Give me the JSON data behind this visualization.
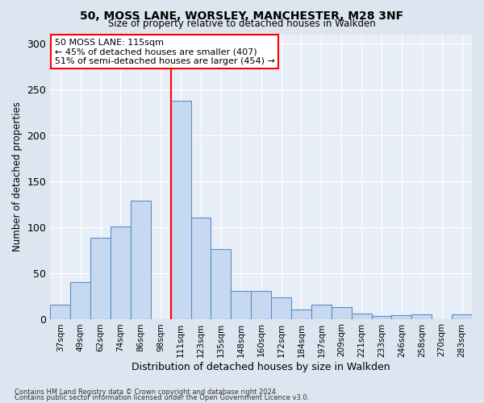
{
  "title1": "50, MOSS LANE, WORSLEY, MANCHESTER, M28 3NF",
  "title2": "Size of property relative to detached houses in Walkden",
  "xlabel": "Distribution of detached houses by size in Walkden",
  "ylabel": "Number of detached properties",
  "categories": [
    "37sqm",
    "49sqm",
    "62sqm",
    "74sqm",
    "86sqm",
    "98sqm",
    "111sqm",
    "123sqm",
    "135sqm",
    "148sqm",
    "160sqm",
    "172sqm",
    "184sqm",
    "197sqm",
    "209sqm",
    "221sqm",
    "233sqm",
    "246sqm",
    "258sqm",
    "270sqm",
    "283sqm"
  ],
  "values": [
    15,
    40,
    88,
    101,
    129,
    0,
    238,
    110,
    76,
    30,
    30,
    23,
    10,
    15,
    13,
    6,
    3,
    4,
    5,
    0,
    5
  ],
  "bar_color": "#c6d9f0",
  "bar_edge_color": "#5b8ec4",
  "vline_x_index": 6,
  "vline_color": "red",
  "annotation_text": "50 MOSS LANE: 115sqm\n← 45% of detached houses are smaller (407)\n51% of semi-detached houses are larger (454) →",
  "annotation_box_color": "white",
  "annotation_box_edge": "red",
  "ylim": [
    0,
    310
  ],
  "yticks": [
    0,
    50,
    100,
    150,
    200,
    250,
    300
  ],
  "footnote1": "Contains HM Land Registry data © Crown copyright and database right 2024.",
  "footnote2": "Contains public sector information licensed under the Open Government Licence v3.0.",
  "bg_color": "#dde5f0",
  "plot_bg_color": "#e8eef8"
}
